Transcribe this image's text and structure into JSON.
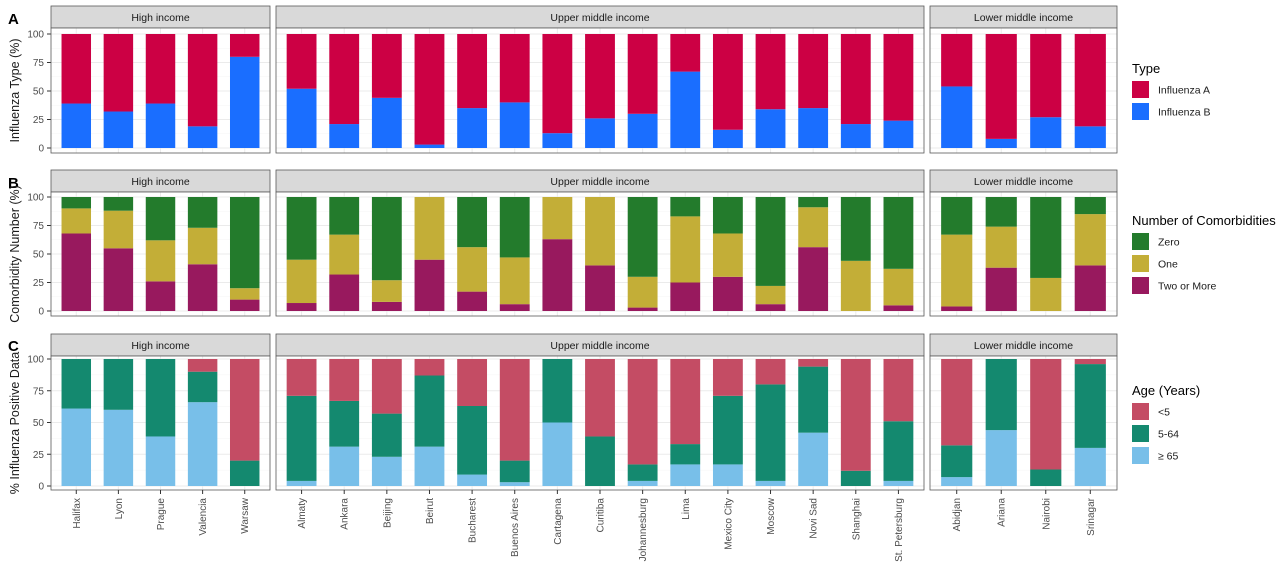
{
  "colors": {
    "influenza_a": "#cc0044",
    "influenza_b": "#1a6eff",
    "zero": "#237b2c",
    "one": "#c3ae37",
    "two_or_more": "#98195e",
    "age_lt5": "#c44c64",
    "age_5_64": "#14896f",
    "age_ge65": "#78bfe9",
    "strip_fill": "#d9d9d9",
    "grid": "#ebebeb",
    "frame": "#595959"
  },
  "facets": [
    {
      "label": "High income",
      "cities": [
        "Halifax",
        "Lyon",
        "Prague",
        "Valencia",
        "Warsaw"
      ]
    },
    {
      "label": "Upper middle income",
      "cities": [
        "Almaty",
        "Ankara",
        "Beijing",
        "Beirut",
        "Bucharest",
        "Buenos Aires",
        "Cartagena",
        "Curitiba",
        "Johannesburg",
        "Lima",
        "Mexico City",
        "Moscow",
        "Novi Sad",
        "Shanghai",
        "St. Petersburg"
      ]
    },
    {
      "label": "Lower middle income",
      "cities": [
        "Abidjan",
        "Ariana",
        "Nairobi",
        "Srinagar"
      ]
    }
  ],
  "chart_data": [
    {
      "type": "bar",
      "stacked": true,
      "panel": "A",
      "ylabel": "Influenza Type (%)",
      "ylim": [
        0,
        100
      ],
      "yticks": [
        0,
        25,
        50,
        75,
        100
      ],
      "legend": {
        "title": "Type",
        "placement": "right"
      },
      "series": [
        {
          "name": "Influenza A",
          "color_key": "influenza_a",
          "values": [
            61,
            68,
            61,
            81,
            20,
            48,
            79,
            56,
            97,
            65,
            60,
            87,
            74,
            70,
            33,
            84,
            66,
            65,
            79,
            76,
            46,
            92,
            73,
            81
          ]
        },
        {
          "name": "Influenza B",
          "color_key": "influenza_b",
          "values": [
            39,
            32,
            39,
            19,
            80,
            52,
            21,
            44,
            3,
            35,
            40,
            13,
            26,
            30,
            67,
            16,
            34,
            35,
            21,
            24,
            54,
            8,
            27,
            19
          ]
        }
      ]
    },
    {
      "type": "bar",
      "stacked": true,
      "panel": "B",
      "ylabel": "Comorbidity Number (%)",
      "ylim": [
        0,
        100
      ],
      "yticks": [
        0,
        25,
        50,
        75,
        100
      ],
      "legend": {
        "title": "Number of Comorbidities",
        "placement": "right"
      },
      "series": [
        {
          "name": "Zero",
          "color_key": "zero",
          "values": [
            10,
            12,
            38,
            27,
            80,
            55,
            33,
            73,
            0,
            44,
            53,
            0,
            0,
            70,
            17,
            32,
            78,
            9,
            56,
            63,
            33,
            26,
            71,
            15
          ]
        },
        {
          "name": "One",
          "color_key": "one",
          "values": [
            22,
            33,
            36,
            32,
            10,
            38,
            35,
            19,
            55,
            39,
            41,
            37,
            60,
            27,
            58,
            38,
            16,
            35,
            44,
            32,
            63,
            36,
            29,
            45
          ]
        },
        {
          "name": "Two or More",
          "color_key": "two_or_more",
          "values": [
            68,
            55,
            26,
            41,
            10,
            7,
            32,
            8,
            45,
            17,
            6,
            63,
            40,
            3,
            25,
            30,
            6,
            56,
            0,
            5,
            4,
            38,
            0,
            40
          ]
        }
      ]
    },
    {
      "type": "bar",
      "stacked": true,
      "panel": "C",
      "ylabel": "% Influenza Positive Data",
      "ylim": [
        0,
        100
      ],
      "yticks": [
        0,
        25,
        50,
        75,
        100
      ],
      "legend": {
        "title": "Age (Years)",
        "placement": "right"
      },
      "series": [
        {
          "name": "<5",
          "color_key": "age_lt5",
          "values": [
            0,
            0,
            0,
            10,
            80,
            29,
            33,
            43,
            13,
            37,
            80,
            0,
            61,
            83,
            67,
            29,
            20,
            6,
            88,
            49,
            68,
            0,
            87,
            4
          ]
        },
        {
          "name": "5-64",
          "color_key": "age_5_64",
          "values": [
            39,
            40,
            61,
            24,
            20,
            67,
            36,
            34,
            56,
            54,
            17,
            50,
            39,
            13,
            16,
            54,
            76,
            52,
            12,
            47,
            25,
            56,
            13,
            66
          ]
        },
        {
          "name": "≥ 65",
          "color_key": "age_ge65",
          "values": [
            61,
            60,
            39,
            66,
            0,
            4,
            31,
            23,
            31,
            9,
            3,
            50,
            0,
            4,
            17,
            17,
            4,
            42,
            0,
            4,
            7,
            44,
            0,
            30
          ]
        }
      ]
    }
  ]
}
